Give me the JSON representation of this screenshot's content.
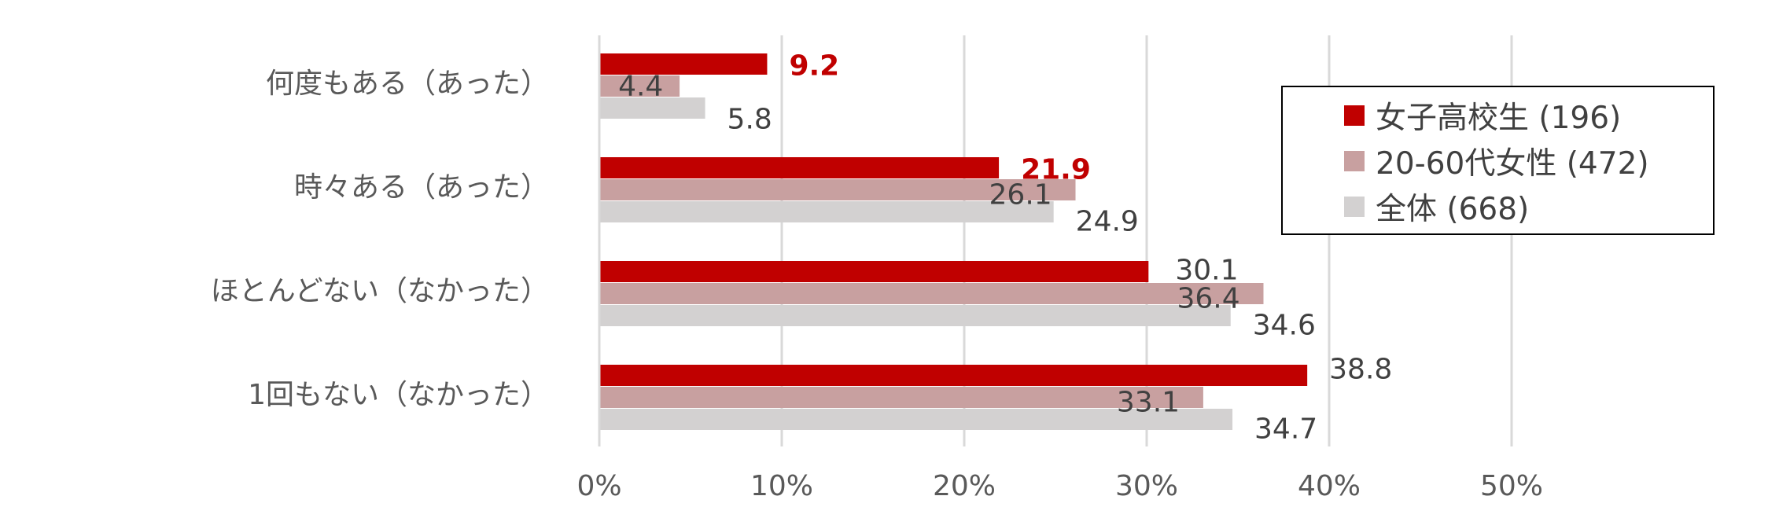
{
  "chart_data": {
    "type": "bar",
    "orientation": "horizontal",
    "categories": [
      "何度もある（あった）",
      "時々ある（あった）",
      "ほとんどない（なかった）",
      "1回もない（なかった）"
    ],
    "series": [
      {
        "name": "女子高校生 (196)",
        "color": "#c00000",
        "values": [
          9.2,
          21.9,
          30.1,
          38.8
        ],
        "values_label": [
          "9.2",
          "21.9",
          "30.1",
          "38.8"
        ]
      },
      {
        "name": "20-60代女性 (472)",
        "color": "#c8a0a0",
        "values": [
          4.4,
          26.1,
          36.4,
          33.1
        ],
        "values_label": [
          "4.4",
          "26.1",
          "36.4",
          "33.1"
        ]
      },
      {
        "name": "全体 (668)",
        "color": "#d3d1d1",
        "values": [
          5.8,
          24.9,
          34.6,
          34.7
        ],
        "values_label": [
          "5.8",
          "24.9",
          "34.6",
          "34.7"
        ]
      }
    ],
    "xlim": [
      0,
      50
    ],
    "xticks": [
      "0%",
      "10%",
      "20%",
      "30%",
      "40%",
      "50%"
    ],
    "grid": true,
    "legend_position": "top-right",
    "highlighted_labels": [
      "9.2",
      "21.9"
    ]
  }
}
